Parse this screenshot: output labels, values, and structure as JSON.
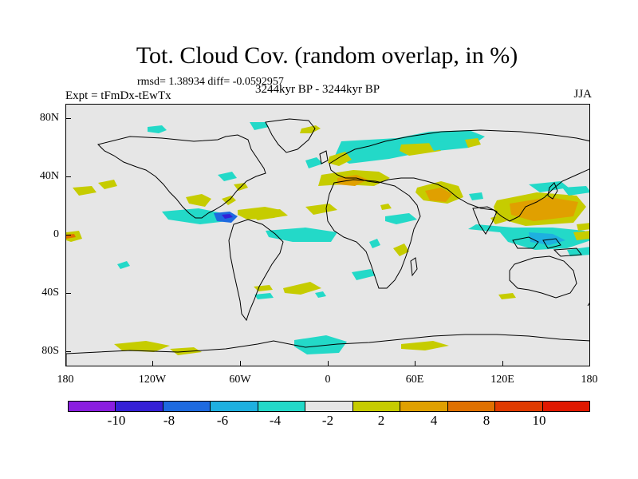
{
  "title": "Tot. Cloud Cov. (random overlap, in %)",
  "stats": "rmsd= 1.38934 diff= -0.0592957",
  "experiment": "Expt = tFmDx-tEwTx",
  "period": "3244kyr BP - 3244kyr BP",
  "season": "JJA",
  "map": {
    "projection": "cylindrical-equidistant",
    "lon_range": [
      -180,
      180
    ],
    "lat_range": [
      -90,
      90
    ],
    "land_outline": "black",
    "background_color": "#e6e6e6",
    "y_tick_labels": [
      {
        "lat": 80,
        "label": "80N"
      },
      {
        "lat": 40,
        "label": "40N"
      },
      {
        "lat": 0,
        "label": "0"
      },
      {
        "lat": -40,
        "label": "40S"
      },
      {
        "lat": -80,
        "label": "80S"
      }
    ],
    "x_tick_labels": [
      {
        "lon": -180,
        "label": "180"
      },
      {
        "lon": -120,
        "label": "120W"
      },
      {
        "lon": -60,
        "label": "60W"
      },
      {
        "lon": 0,
        "label": "0"
      },
      {
        "lon": 60,
        "label": "60E"
      },
      {
        "lon": 120,
        "label": "120E"
      },
      {
        "lon": 180,
        "label": "180"
      }
    ]
  },
  "colorbar": {
    "colors": [
      "#8a1ee0",
      "#3520d6",
      "#1e6ae0",
      "#1eb0e0",
      "#23d9c8",
      "#e6e6e6",
      "#c6cc00",
      "#e0a000",
      "#e07000",
      "#e03a00",
      "#e01800"
    ],
    "labels": [
      "-10",
      "-8",
      "-6",
      "-4",
      "-2",
      "2",
      "4",
      "8",
      "10"
    ]
  }
}
